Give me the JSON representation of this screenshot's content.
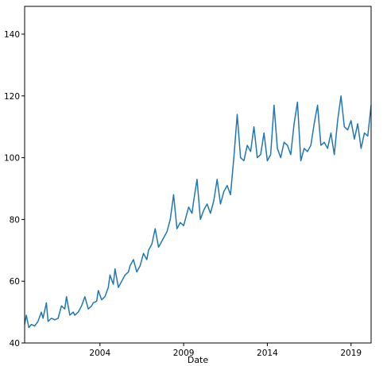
{
  "chart_data": {
    "type": "line",
    "title": "",
    "xlabel": "Date",
    "ylabel": "",
    "xlim": [
      1999.5,
      2020.2
    ],
    "ylim": [
      40,
      149
    ],
    "grid": false,
    "legend": "none",
    "x_ticks": [
      {
        "value": 2004,
        "label": "2004"
      },
      {
        "value": 2009,
        "label": "2009"
      },
      {
        "value": 2014,
        "label": "2014"
      },
      {
        "value": 2019,
        "label": "2019"
      }
    ],
    "y_ticks": [
      {
        "value": 40,
        "label": "40"
      },
      {
        "value": 60,
        "label": "60"
      },
      {
        "value": 80,
        "label": "80"
      },
      {
        "value": 100,
        "label": "100"
      },
      {
        "value": 120,
        "label": "120"
      },
      {
        "value": 140,
        "label": "140"
      }
    ],
    "series": [
      {
        "color": "#1f77b4",
        "x": [
          1999.5,
          1999.6,
          1999.75,
          1999.9,
          2000.1,
          2000.3,
          2000.5,
          2000.6,
          2000.8,
          2000.9,
          2001.1,
          2001.3,
          2001.5,
          2001.7,
          2001.9,
          2002.0,
          2002.2,
          2002.4,
          2002.5,
          2002.7,
          2002.9,
          2003.1,
          2003.3,
          2003.5,
          2003.6,
          2003.8,
          2003.9,
          2004.1,
          2004.3,
          2004.5,
          2004.6,
          2004.8,
          2004.9,
          2005.1,
          2005.3,
          2005.5,
          2005.7,
          2005.8,
          2006.0,
          2006.2,
          2006.4,
          2006.6,
          2006.8,
          2006.9,
          2007.1,
          2007.3,
          2007.5,
          2007.6,
          2007.8,
          2008.0,
          2008.2,
          2008.4,
          2008.6,
          2008.8,
          2009.0,
          2009.1,
          2009.3,
          2009.5,
          2009.6,
          2009.8,
          2010.0,
          2010.2,
          2010.4,
          2010.6,
          2010.8,
          2011.0,
          2011.2,
          2011.4,
          2011.6,
          2011.8,
          2012.0,
          2012.2,
          2012.4,
          2012.6,
          2012.8,
          2013.0,
          2013.2,
          2013.4,
          2013.6,
          2013.8,
          2014.0,
          2014.2,
          2014.4,
          2014.6,
          2014.8,
          2015.0,
          2015.2,
          2015.4,
          2015.6,
          2015.8,
          2016.0,
          2016.2,
          2016.4,
          2016.6,
          2016.8,
          2017.0,
          2017.2,
          2017.4,
          2017.6,
          2017.8,
          2018.0,
          2018.2,
          2018.4,
          2018.6,
          2018.8,
          2019.0,
          2019.2,
          2019.4,
          2019.6,
          2019.8,
          2020.0,
          2020.2
        ],
        "y": [
          46,
          49,
          45,
          46,
          45.5,
          47,
          50,
          48,
          53,
          47,
          48,
          47.5,
          48,
          52,
          51,
          55,
          49,
          50,
          49,
          50,
          52,
          55,
          51,
          52,
          53,
          53.5,
          57,
          54,
          55,
          58,
          62,
          59,
          64,
          58,
          60,
          62,
          63,
          65,
          67,
          63,
          65,
          69,
          67,
          70,
          72,
          77,
          71,
          72,
          74,
          76,
          80,
          88,
          77,
          79,
          78,
          80,
          84,
          82,
          86,
          93,
          80,
          83,
          85,
          82,
          86,
          93,
          85,
          89,
          91,
          88,
          100,
          114,
          100,
          99,
          104,
          102,
          110,
          100,
          101,
          108,
          99,
          101,
          117,
          103,
          100,
          105,
          104,
          101,
          111,
          118,
          99,
          103,
          102,
          104,
          111,
          117,
          104,
          105,
          103,
          108,
          101,
          112,
          120,
          110,
          109,
          112,
          106,
          111,
          103,
          108,
          107,
          117
        ]
      }
    ]
  }
}
